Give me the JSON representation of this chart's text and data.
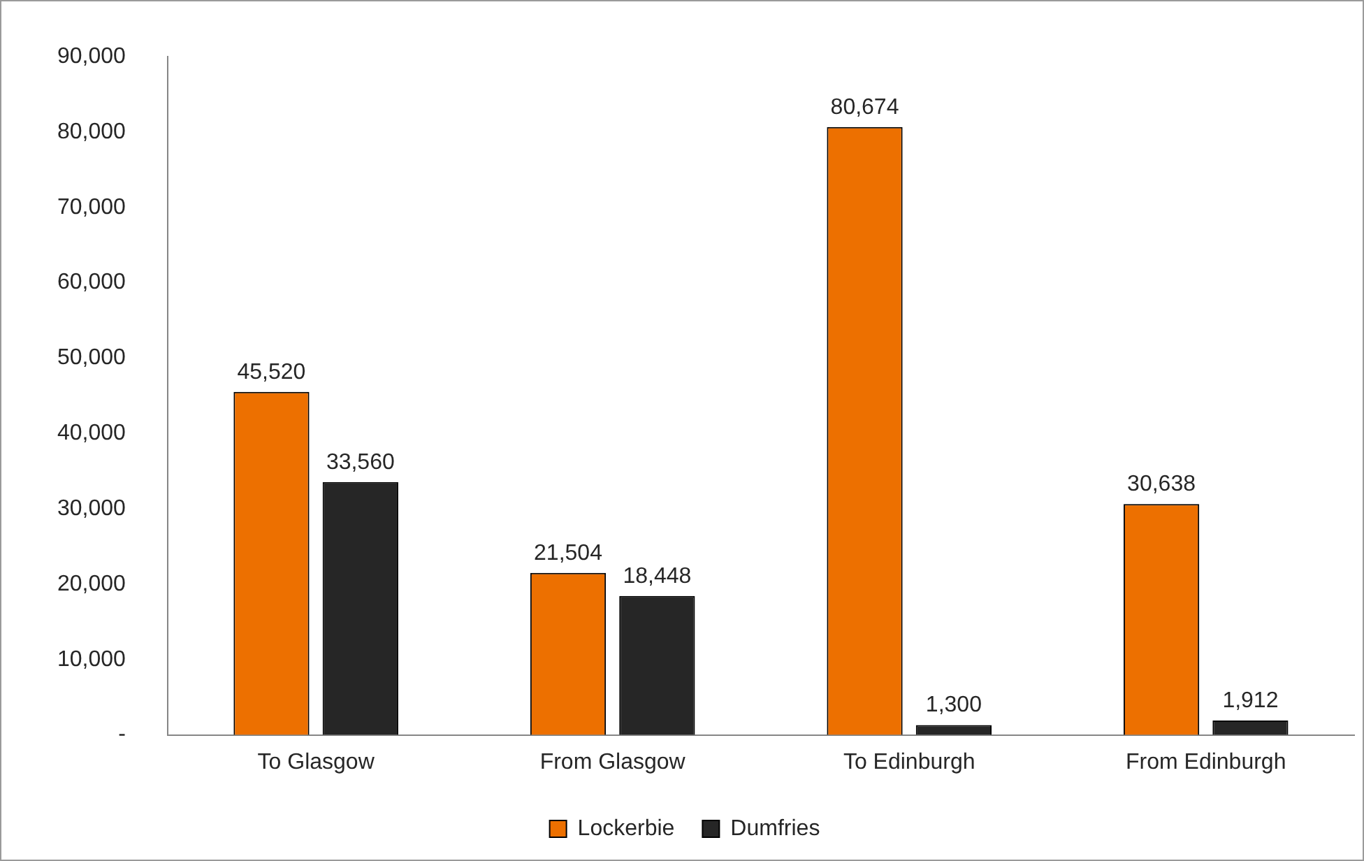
{
  "chart_data": {
    "type": "bar",
    "categories": [
      "To Glasgow",
      "From Glasgow",
      "To Edinburgh",
      "From Edinburgh"
    ],
    "series": [
      {
        "name": "Lockerbie",
        "color": "#ed7000",
        "values": [
          45520,
          21504,
          80674,
          30638
        ],
        "value_labels": [
          "45,520",
          "21,504",
          "80,674",
          "30,638"
        ]
      },
      {
        "name": "Dumfries",
        "color": "#262626",
        "values": [
          33560,
          18448,
          1300,
          1912
        ],
        "value_labels": [
          "33,560",
          "18,448",
          "1,300",
          "1,912"
        ]
      }
    ],
    "ylim": [
      0,
      90000
    ],
    "yticks": [
      {
        "value": 0,
        "label": "-"
      },
      {
        "value": 10000,
        "label": "10,000"
      },
      {
        "value": 20000,
        "label": "20,000"
      },
      {
        "value": 30000,
        "label": "30,000"
      },
      {
        "value": 40000,
        "label": "40,000"
      },
      {
        "value": 50000,
        "label": "50,000"
      },
      {
        "value": 60000,
        "label": "60,000"
      },
      {
        "value": 70000,
        "label": "70,000"
      },
      {
        "value": 80000,
        "label": "80,000"
      },
      {
        "value": 90000,
        "label": "90,000"
      }
    ],
    "grid": false,
    "legend": "bottom"
  }
}
